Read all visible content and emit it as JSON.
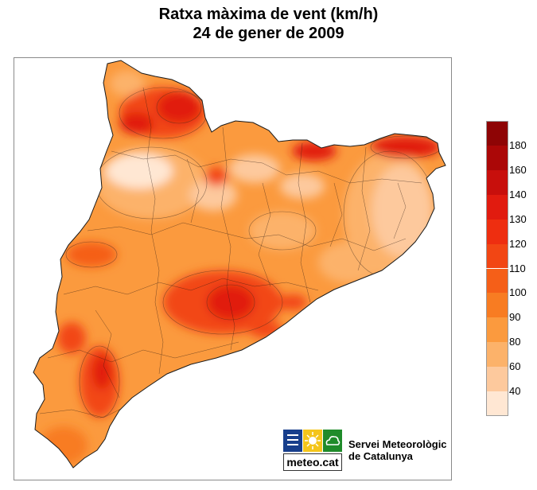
{
  "title": "Ratxa màxima de vent (km/h)",
  "subtitle": "24 de gener de 2009",
  "legend": {
    "ticks": [
      "180",
      "160",
      "140",
      "130",
      "120",
      "110",
      "100",
      "90",
      "80",
      "60",
      "40"
    ],
    "colors": [
      "#ffe7d3",
      "#fdc99d",
      "#fcb26a",
      "#fb9a3e",
      "#f87c22",
      "#f55f18",
      "#f24614",
      "#ee2e10",
      "#e11b0f",
      "#c80f0c",
      "#ab0707",
      "#8e0405"
    ]
  },
  "logo": {
    "text": "meteo.cat",
    "icons": [
      "precipitation-lines-icon",
      "sun-icon",
      "cloud-icon"
    ],
    "icon_colors": [
      "#173e8c",
      "#f4c51a",
      "#1f8b2a"
    ]
  },
  "organization": {
    "line1": "Servei Meteorològic",
    "line2": "de Catalunya"
  }
}
